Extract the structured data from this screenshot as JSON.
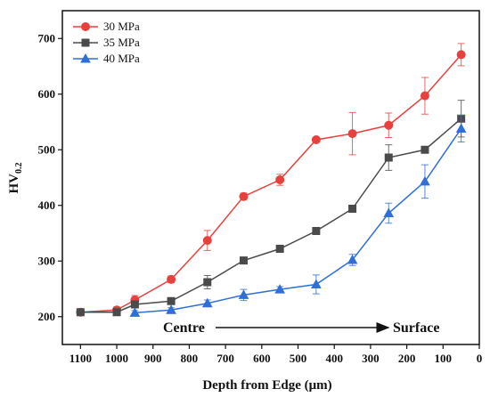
{
  "chart_data": {
    "type": "line",
    "xlabel": "Depth from Edge (μm)",
    "ylabel_main": "HV",
    "ylabel_sub": "0.2",
    "xlim": [
      1150,
      0
    ],
    "ylim": [
      150,
      750
    ],
    "x_ticks": [
      1100,
      1000,
      900,
      800,
      700,
      600,
      500,
      400,
      300,
      200,
      100,
      0
    ],
    "y_ticks": [
      200,
      300,
      400,
      500,
      600,
      700
    ],
    "legend_position": "top-left",
    "annotation_left": "Centre",
    "annotation_right": "Surface",
    "series": [
      {
        "name": "30 MPa",
        "color": "#e8403d",
        "marker": "circle",
        "points": [
          {
            "x": 1100,
            "y": 208,
            "err": 5
          },
          {
            "x": 1000,
            "y": 212,
            "err": 5
          },
          {
            "x": 950,
            "y": 230,
            "err": 8
          },
          {
            "x": 850,
            "y": 267,
            "err": 6
          },
          {
            "x": 750,
            "y": 337,
            "err": 18
          },
          {
            "x": 650,
            "y": 416,
            "err": 6
          },
          {
            "x": 550,
            "y": 446,
            "err": 10
          },
          {
            "x": 450,
            "y": 518,
            "err": 4
          },
          {
            "x": 350,
            "y": 529,
            "err": 38
          },
          {
            "x": 250,
            "y": 544,
            "err": 22
          },
          {
            "x": 150,
            "y": 597,
            "err": 33
          },
          {
            "x": 50,
            "y": 671,
            "err": 20
          }
        ]
      },
      {
        "name": "35 MPa",
        "color": "#4a4a4a",
        "marker": "square",
        "points": [
          {
            "x": 1100,
            "y": 208,
            "err": 3
          },
          {
            "x": 1000,
            "y": 208,
            "err": 3
          },
          {
            "x": 950,
            "y": 222,
            "err": 5
          },
          {
            "x": 850,
            "y": 228,
            "err": 5
          },
          {
            "x": 750,
            "y": 262,
            "err": 12
          },
          {
            "x": 650,
            "y": 301,
            "err": 4
          },
          {
            "x": 550,
            "y": 322,
            "err": 5
          },
          {
            "x": 450,
            "y": 354,
            "err": 4
          },
          {
            "x": 350,
            "y": 394,
            "err": 4
          },
          {
            "x": 250,
            "y": 486,
            "err": 23
          },
          {
            "x": 150,
            "y": 500,
            "err": 5
          },
          {
            "x": 50,
            "y": 556,
            "err": 33
          }
        ]
      },
      {
        "name": "40 MPa",
        "color": "#2f6fd6",
        "marker": "triangle",
        "points": [
          {
            "x": 950,
            "y": 207,
            "err": 4
          },
          {
            "x": 850,
            "y": 212,
            "err": 4
          },
          {
            "x": 750,
            "y": 224,
            "err": 6
          },
          {
            "x": 650,
            "y": 239,
            "err": 10
          },
          {
            "x": 550,
            "y": 249,
            "err": 5
          },
          {
            "x": 450,
            "y": 258,
            "err": 17
          },
          {
            "x": 350,
            "y": 302,
            "err": 10
          },
          {
            "x": 250,
            "y": 386,
            "err": 18
          },
          {
            "x": 150,
            "y": 443,
            "err": 30
          },
          {
            "x": 50,
            "y": 538,
            "err": 24
          }
        ]
      }
    ]
  }
}
